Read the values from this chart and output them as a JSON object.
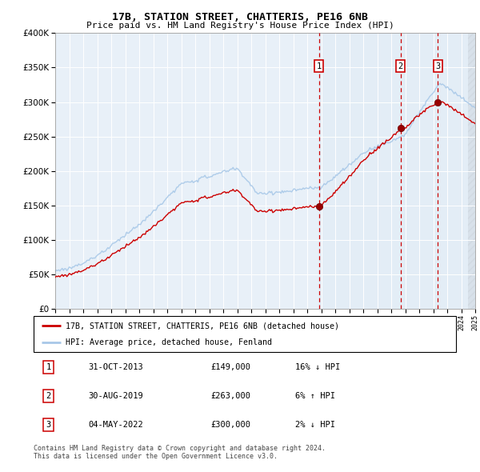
{
  "title": "17B, STATION STREET, CHATTERIS, PE16 6NB",
  "subtitle": "Price paid vs. HM Land Registry's House Price Index (HPI)",
  "legend_line1": "17B, STATION STREET, CHATTERIS, PE16 6NB (detached house)",
  "legend_line2": "HPI: Average price, detached house, Fenland",
  "transaction1_date": "31-OCT-2013",
  "transaction1_price": "£149,000",
  "transaction1_hpi": "16% ↓ HPI",
  "transaction1_year": 2013.83,
  "transaction1_value": 149000,
  "transaction2_date": "30-AUG-2019",
  "transaction2_price": "£263,000",
  "transaction2_hpi": "6% ↑ HPI",
  "transaction2_year": 2019.67,
  "transaction2_value": 263000,
  "transaction3_date": "04-MAY-2022",
  "transaction3_price": "£300,000",
  "transaction3_hpi": "2% ↓ HPI",
  "transaction3_year": 2022.34,
  "transaction3_value": 300000,
  "copyright": "Contains HM Land Registry data © Crown copyright and database right 2024.\nThis data is licensed under the Open Government Licence v3.0.",
  "hpi_color": "#a8c8e8",
  "price_color": "#cc0000",
  "dot_color": "#990000",
  "vline_color": "#cc0000",
  "background_color": "#e8f0f8",
  "shade_color": "#dce8f4",
  "ylim": [
    0,
    400000
  ],
  "xlim_start": 1995,
  "xlim_end": 2025
}
